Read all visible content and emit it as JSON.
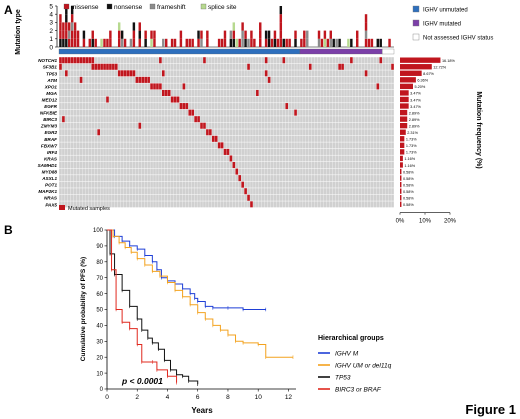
{
  "figure_label": "Figure 1",
  "panel_a_label": "A",
  "panel_b_label": "B",
  "colors": {
    "missense": "#c0161e",
    "nonsense": "#111111",
    "frameshift": "#8c8c8c",
    "splice": "#b7d98f",
    "ighv_unmutated": "#2e6fbd",
    "ighv_mutated": "#7b3fa8",
    "not_assessed": "#ffffff",
    "mutated_cell": "#c0161e",
    "grid_cell": "#d0d0d0",
    "km_ighvm": "#1f3fd6",
    "km_ighvum": "#f3a21e",
    "km_tp53": "#111111",
    "km_birc3": "#e0281e"
  },
  "chart_data": [
    {
      "type": "heatmap",
      "panel": "A",
      "ylabel_top": "Mutation type",
      "top_yticks": [
        "0",
        "1",
        "2",
        "3",
        "4",
        "5"
      ],
      "top_ylim": [
        0,
        5
      ],
      "mutation_types": [
        {
          "name": "missense",
          "label": "missense",
          "color": "#c0161e"
        },
        {
          "name": "nonsense",
          "label": "nonsense",
          "color": "#111111"
        },
        {
          "name": "frameshift",
          "label": "frameshift",
          "color": "#8c8c8c"
        },
        {
          "name": "splice",
          "label": "splice site",
          "color": "#b7d98f"
        }
      ],
      "ighv_status_legend": [
        {
          "key": "unmutated",
          "label": "IGHV unmutated",
          "color": "#2e6fbd"
        },
        {
          "key": "mutated",
          "label": "IGHV mutated",
          "color": "#7b3fa8"
        },
        {
          "key": "na",
          "label": "Not assessed IGHV status",
          "color": "#ffffff"
        }
      ],
      "ighv_status_segments": [
        {
          "status": "unmutated",
          "samples": 82
        },
        {
          "status": "mutated",
          "samples": 28
        },
        {
          "status": "na",
          "samples": 4
        }
      ],
      "genes": [
        "NOTCH1",
        "SF3B1",
        "TP53",
        "ATM",
        "XPO1",
        "MGA",
        "MED12",
        "EGFR",
        "NFKBIE",
        "BIRC3",
        "ZMYM3",
        "EGR2",
        "BRAF",
        "FBXW7",
        "IRF4",
        "KRAS",
        "SAMHD1",
        "MYD88",
        "ASXL1",
        "POT1",
        "MAP2K1",
        "NRAS",
        "PAX5"
      ],
      "frequency_pct": [
        16.18,
        12.72,
        8.67,
        6.36,
        5.2,
        3.47,
        3.47,
        3.47,
        2.89,
        2.89,
        2.89,
        2.31,
        1.73,
        1.73,
        1.73,
        1.16,
        1.16,
        0.58,
        0.58,
        0.58,
        0.58,
        0.58,
        0.58
      ],
      "frequency_labels": [
        "16.18%",
        "12.72%",
        "8.67%",
        "6.36%",
        "5.20%",
        "3.47%",
        "3.47%",
        "3.47%",
        "2.89%",
        "2.89%",
        "2.89%",
        "2.31%",
        "1.73%",
        "1.73%",
        "1.73%",
        "1.16%",
        "1.16%",
        "0.58%",
        "0.58%",
        "0.58%",
        "0.58%",
        "0.58%",
        "0.58%"
      ],
      "frequency_axis_label": "Mutation frequency (%)",
      "frequency_xticks": [
        "0%",
        "10%",
        "20%"
      ],
      "frequency_xlim": [
        0,
        20
      ],
      "mutated_samples_label": "Mutated samples"
    },
    {
      "type": "line",
      "panel": "B",
      "ylabel": "Cumulative probability of PFS (%)",
      "xlabel": "Years",
      "xlim": [
        0,
        12.5
      ],
      "ylim": [
        0,
        100
      ],
      "xticks": [
        "0",
        "2",
        "4",
        "6",
        "8",
        "10",
        "12"
      ],
      "yticks": [
        "0",
        "10",
        "20",
        "30",
        "40",
        "50",
        "60",
        "70",
        "80",
        "90",
        "100"
      ],
      "annotation": "p < 0.0001",
      "legend_title": "Hierarchical groups",
      "series": [
        {
          "name": "IGHV M",
          "color": "#1f3fd6",
          "points": [
            [
              0,
              100
            ],
            [
              0.5,
              96
            ],
            [
              1,
              93
            ],
            [
              1.5,
              90
            ],
            [
              2,
              88
            ],
            [
              2.5,
              84
            ],
            [
              3,
              80
            ],
            [
              3.3,
              75
            ],
            [
              3.6,
              70
            ],
            [
              4,
              68
            ],
            [
              4.5,
              66
            ],
            [
              5,
              63
            ],
            [
              5.5,
              60
            ],
            [
              5.8,
              57
            ],
            [
              6,
              55
            ],
            [
              6.5,
              52
            ],
            [
              7,
              51
            ],
            [
              8,
              51
            ],
            [
              9,
              50
            ],
            [
              10.5,
              50
            ]
          ]
        },
        {
          "name": "IGHV UM or del11q",
          "color": "#f3a21e",
          "points": [
            [
              0,
              100
            ],
            [
              0.4,
              96
            ],
            [
              0.8,
              92
            ],
            [
              1.2,
              89
            ],
            [
              1.6,
              86
            ],
            [
              2,
              82
            ],
            [
              2.5,
              78
            ],
            [
              3,
              74
            ],
            [
              3.5,
              71
            ],
            [
              4,
              67
            ],
            [
              4.5,
              62
            ],
            [
              5,
              58
            ],
            [
              5.5,
              53
            ],
            [
              6,
              48
            ],
            [
              6.5,
              44
            ],
            [
              7,
              40
            ],
            [
              7.5,
              37
            ],
            [
              8,
              34
            ],
            [
              8.5,
              30
            ],
            [
              9,
              29
            ],
            [
              10,
              28
            ],
            [
              10.5,
              20
            ],
            [
              12.3,
              20
            ]
          ]
        },
        {
          "name": "TP53",
          "color": "#111111",
          "points": [
            [
              0,
              100
            ],
            [
              0.2,
              85
            ],
            [
              0.5,
              72
            ],
            [
              1,
              62
            ],
            [
              1.5,
              52
            ],
            [
              2,
              44
            ],
            [
              2.3,
              37
            ],
            [
              2.7,
              32
            ],
            [
              3,
              29
            ],
            [
              3.4,
              25
            ],
            [
              3.8,
              18
            ],
            [
              4.2,
              12
            ],
            [
              4.6,
              9
            ],
            [
              5,
              8
            ],
            [
              5.4,
              5
            ],
            [
              6,
              3
            ]
          ]
        },
        {
          "name": "BIRC3 or BRAF",
          "color": "#e0281e",
          "points": [
            [
              0,
              100
            ],
            [
              0.3,
              75
            ],
            [
              0.6,
              50
            ],
            [
              1,
              42
            ],
            [
              1.5,
              38
            ],
            [
              2,
              28
            ],
            [
              2.3,
              17
            ],
            [
              3,
              17
            ],
            [
              3.3,
              12
            ],
            [
              4,
              8
            ],
            [
              4.6,
              4
            ]
          ]
        }
      ]
    }
  ]
}
